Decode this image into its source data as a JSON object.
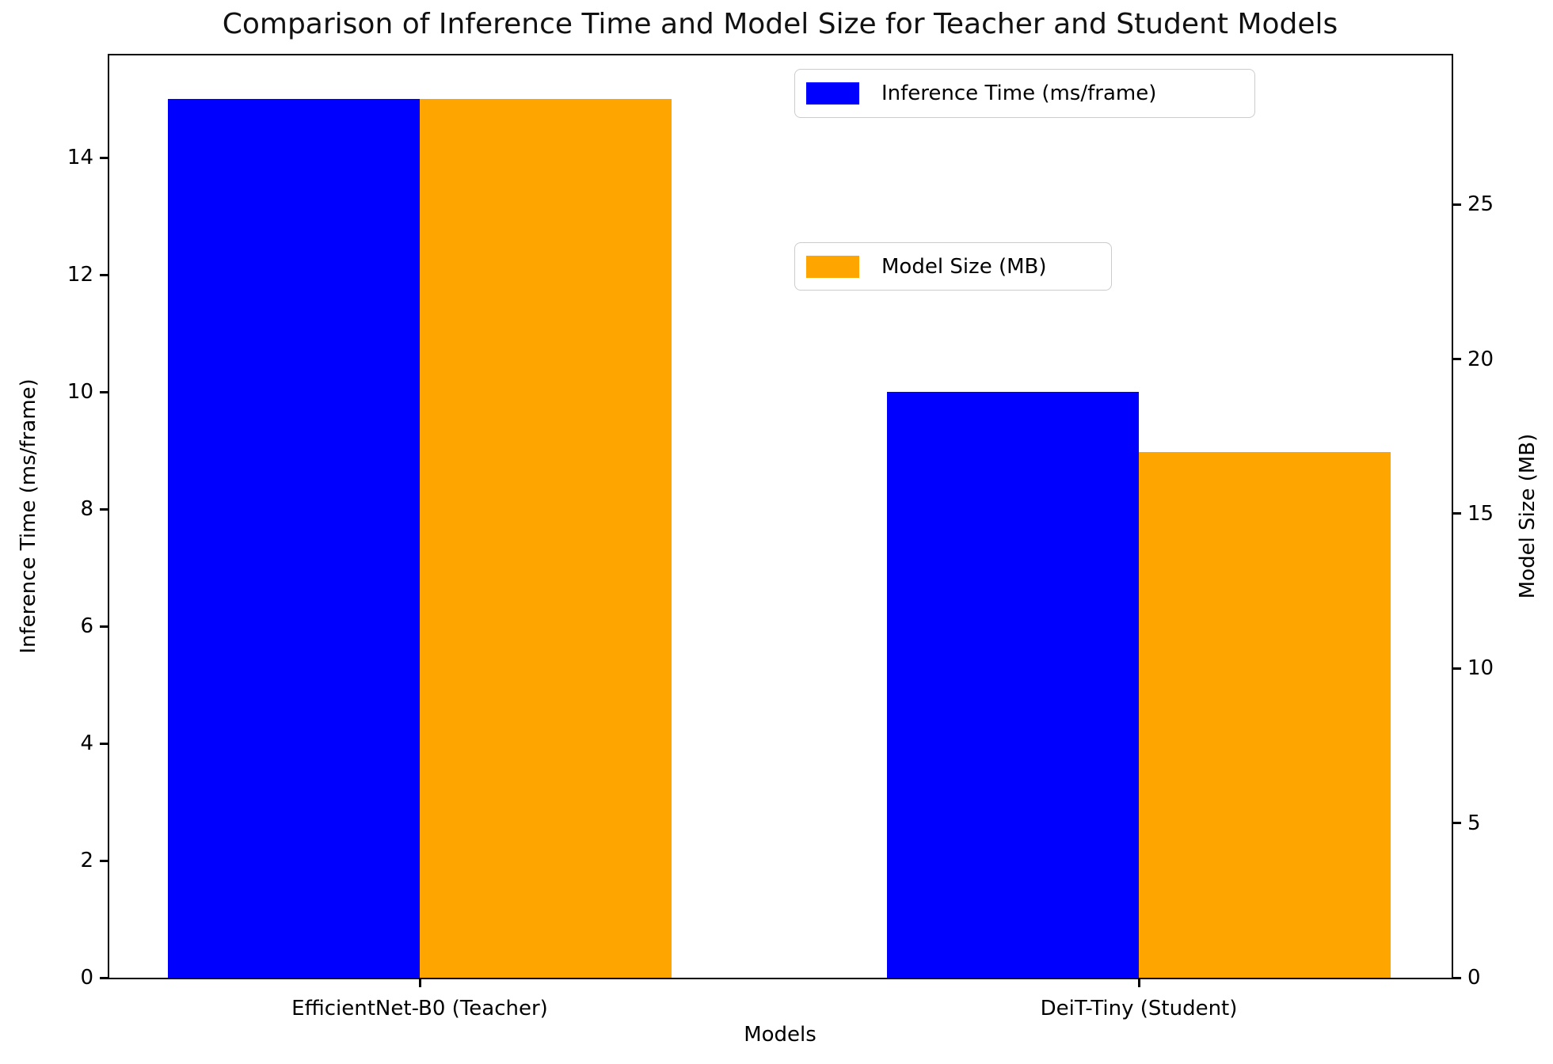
{
  "chart_data": {
    "type": "bar",
    "title": "Comparison of Inference Time and Model Size for Teacher and Student Models",
    "xlabel": "Models",
    "ylabel_left": "Inference Time (ms/frame)",
    "ylabel_right": "Model Size (MB)",
    "categories": [
      "EfficientNet-B0 (Teacher)",
      "DeiT-Tiny (Student)"
    ],
    "series": [
      {
        "name": "Inference Time (ms/frame)",
        "axis": "left",
        "color": "#0000ff",
        "values": [
          15,
          10
        ]
      },
      {
        "name": "Model Size (MB)",
        "axis": "right",
        "color": "#ffa500",
        "values": [
          28.4,
          17
        ]
      }
    ],
    "left_axis": {
      "ticks": [
        0,
        2,
        4,
        6,
        8,
        10,
        12,
        14
      ],
      "min": 0,
      "max": 15.75
    },
    "right_axis": {
      "ticks": [
        0,
        5,
        10,
        15,
        20,
        25
      ],
      "min": 0,
      "max": 29.82
    },
    "grid": false,
    "legend_position": "upper right, two stacked boxes"
  },
  "colors": {
    "inference_time": "#0000ff",
    "model_size": "#ffa500",
    "spine": "#000000",
    "legend_border": "#cccccc",
    "background": "#ffffff",
    "text": "#000000"
  }
}
